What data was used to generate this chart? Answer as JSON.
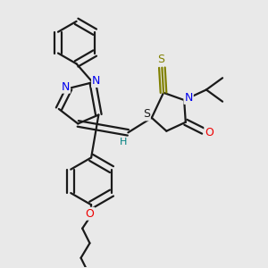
{
  "bg_color": "#e9e9e9",
  "bond_color": "#1a1a1a",
  "bond_width": 1.6,
  "atom_colors": {
    "N": "#0000ee",
    "O": "#ee0000",
    "S_thioxo": "#808000",
    "S_ring": "#1a1a1a",
    "H": "#008080",
    "C": "#1a1a1a"
  },
  "dbo": 0.015
}
